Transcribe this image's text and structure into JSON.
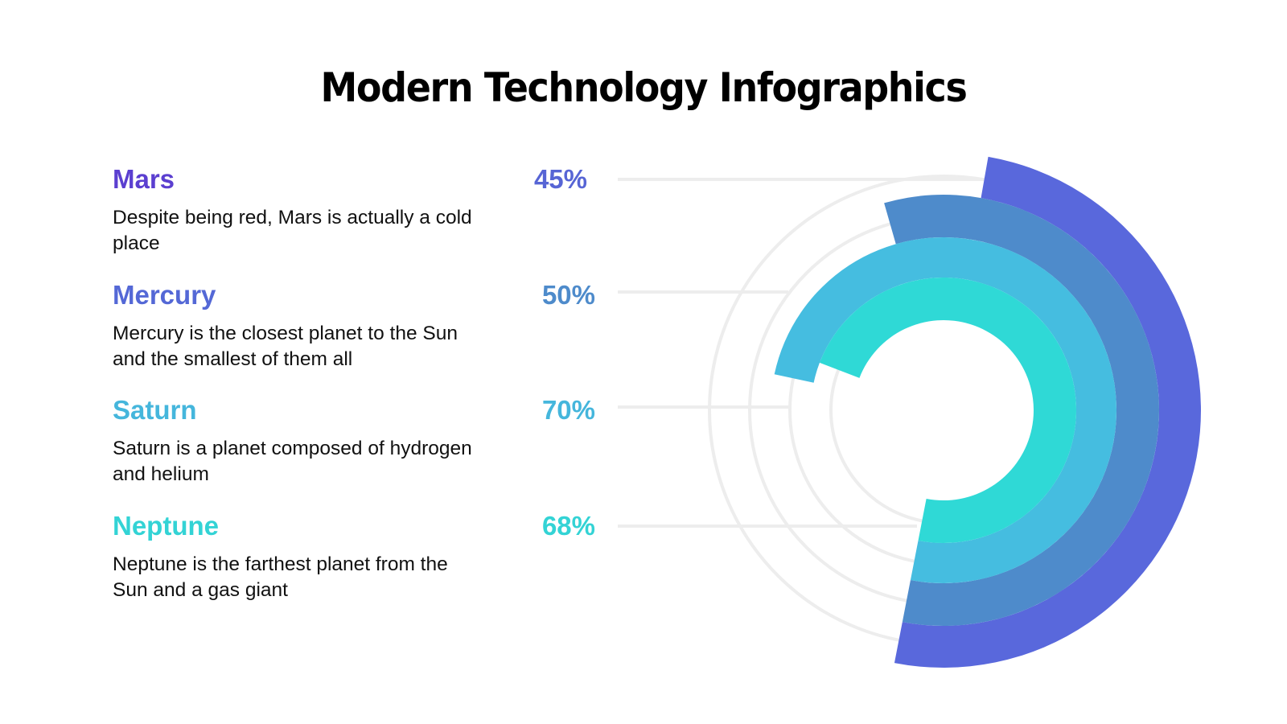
{
  "title": "Modern Technology Infographics",
  "items": [
    {
      "name": "Mars",
      "description": "Despite being red, Mars is actually a cold place",
      "value_label": "45%",
      "name_color": "#5B3FD0",
      "pct_color": "#5765D5"
    },
    {
      "name": "Mercury",
      "description": "Mercury is the closest planet to the Sun and the smallest of them all",
      "value_label": "50%",
      "name_color": "#5468D6",
      "pct_color": "#4E8BCB"
    },
    {
      "name": "Saturn",
      "description": "Saturn is a planet composed of hydrogen and helium",
      "value_label": "70%",
      "name_color": "#45B6DC",
      "pct_color": "#45B6DC"
    },
    {
      "name": "Neptune",
      "description": "Neptune is the farthest planet from the Sun and a gas giant",
      "value_label": "68%",
      "name_color": "#33D3D5",
      "pct_color": "#33D3D5"
    }
  ],
  "chart_data": {
    "type": "radial-bar",
    "title": "Modern Technology Infographics",
    "categories": [
      "Mars",
      "Mercury",
      "Saturn",
      "Neptune"
    ],
    "values": [
      45,
      50,
      70,
      68
    ],
    "unit": "%",
    "colors": [
      "#5968DC",
      "#4E8BCB",
      "#45BDE0",
      "#2FD9D6"
    ],
    "ring_order": "Mars outermost to Neptune innermost",
    "guide_circles": true,
    "leader_lines": true
  }
}
